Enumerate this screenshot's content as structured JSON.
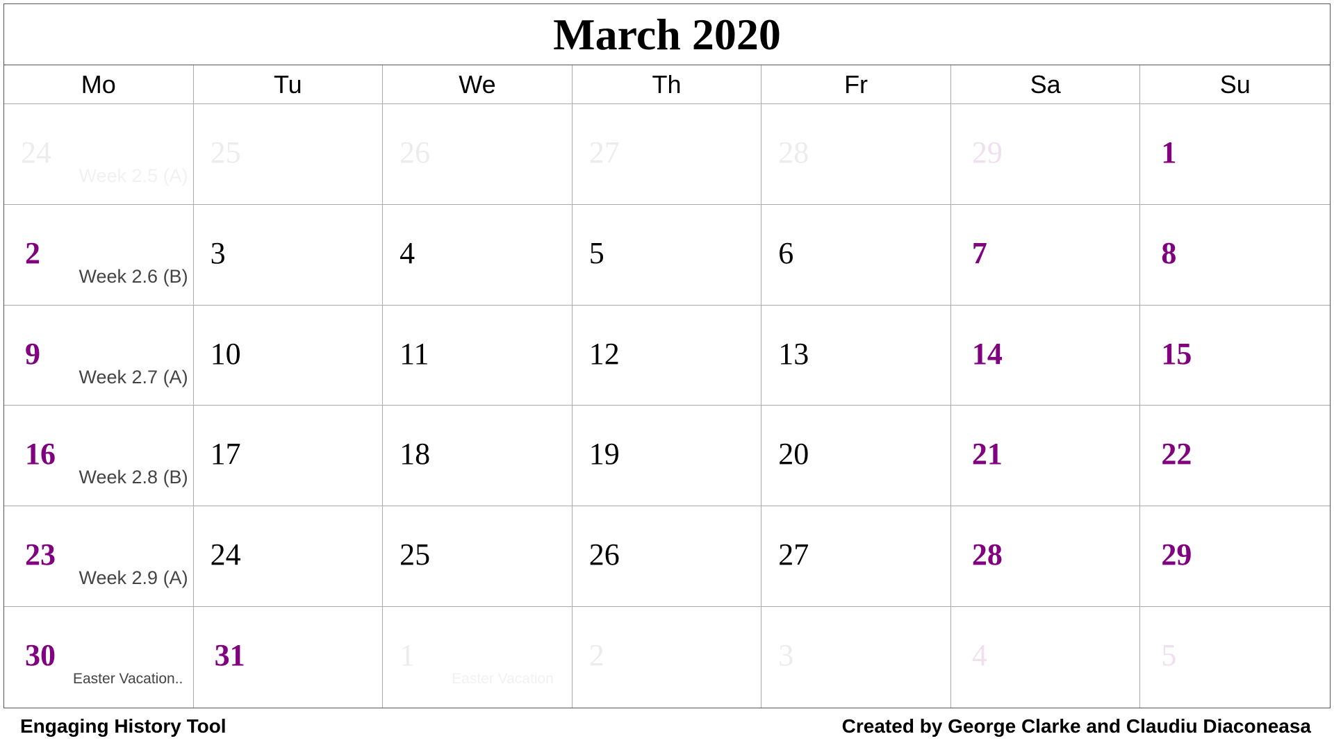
{
  "title": "March 2020",
  "weekdays": [
    "Mo",
    "Tu",
    "We",
    "Th",
    "Fr",
    "Sa",
    "Su"
  ],
  "weeks": [
    {
      "days": [
        {
          "num": "24",
          "faded": true,
          "weekend": false,
          "note": "Week 2.5 (A)"
        },
        {
          "num": "25",
          "faded": true,
          "weekend": false
        },
        {
          "num": "26",
          "faded": true,
          "weekend": false
        },
        {
          "num": "27",
          "faded": true,
          "weekend": false
        },
        {
          "num": "28",
          "faded": true,
          "weekend": false
        },
        {
          "num": "29",
          "faded": true,
          "weekend": true
        },
        {
          "num": "1",
          "faded": false,
          "weekend": true
        }
      ]
    },
    {
      "days": [
        {
          "num": "2",
          "faded": false,
          "weekend": true,
          "note": "Week 2.6 (B)"
        },
        {
          "num": "3",
          "faded": false,
          "weekend": false
        },
        {
          "num": "4",
          "faded": false,
          "weekend": false
        },
        {
          "num": "5",
          "faded": false,
          "weekend": false
        },
        {
          "num": "6",
          "faded": false,
          "weekend": false
        },
        {
          "num": "7",
          "faded": false,
          "weekend": true
        },
        {
          "num": "8",
          "faded": false,
          "weekend": true
        }
      ]
    },
    {
      "days": [
        {
          "num": "9",
          "faded": false,
          "weekend": true,
          "note": "Week 2.7 (A)"
        },
        {
          "num": "10",
          "faded": false,
          "weekend": false
        },
        {
          "num": "11",
          "faded": false,
          "weekend": false
        },
        {
          "num": "12",
          "faded": false,
          "weekend": false
        },
        {
          "num": "13",
          "faded": false,
          "weekend": false
        },
        {
          "num": "14",
          "faded": false,
          "weekend": true
        },
        {
          "num": "15",
          "faded": false,
          "weekend": true
        }
      ]
    },
    {
      "days": [
        {
          "num": "16",
          "faded": false,
          "weekend": true,
          "note": "Week 2.8 (B)"
        },
        {
          "num": "17",
          "faded": false,
          "weekend": false
        },
        {
          "num": "18",
          "faded": false,
          "weekend": false
        },
        {
          "num": "19",
          "faded": false,
          "weekend": false
        },
        {
          "num": "20",
          "faded": false,
          "weekend": false
        },
        {
          "num": "21",
          "faded": false,
          "weekend": true
        },
        {
          "num": "22",
          "faded": false,
          "weekend": true
        }
      ]
    },
    {
      "days": [
        {
          "num": "23",
          "faded": false,
          "weekend": true,
          "note": "Week 2.9 (A)"
        },
        {
          "num": "24",
          "faded": false,
          "weekend": false
        },
        {
          "num": "25",
          "faded": false,
          "weekend": false
        },
        {
          "num": "26",
          "faded": false,
          "weekend": false
        },
        {
          "num": "27",
          "faded": false,
          "weekend": false
        },
        {
          "num": "28",
          "faded": false,
          "weekend": true
        },
        {
          "num": "29",
          "faded": false,
          "weekend": true
        }
      ]
    },
    {
      "days": [
        {
          "num": "30",
          "faded": false,
          "weekend": true,
          "note": "Easter Vacation..",
          "note_small": true
        },
        {
          "num": "31",
          "faded": false,
          "weekend": true
        },
        {
          "num": "1",
          "faded": true,
          "weekend": false,
          "note": "Easter Vacation",
          "note_small": true
        },
        {
          "num": "2",
          "faded": true,
          "weekend": false
        },
        {
          "num": "3",
          "faded": true,
          "weekend": false
        },
        {
          "num": "4",
          "faded": true,
          "weekend": true
        },
        {
          "num": "5",
          "faded": true,
          "weekend": true
        }
      ]
    }
  ],
  "footer": {
    "left": "Engaging History Tool",
    "right": "Created by George Clarke and Claudiu Diaconeasa"
  },
  "colors": {
    "weekend": "#800080",
    "text": "#000000",
    "note": "#444444",
    "grid": "#aaaaaa"
  }
}
